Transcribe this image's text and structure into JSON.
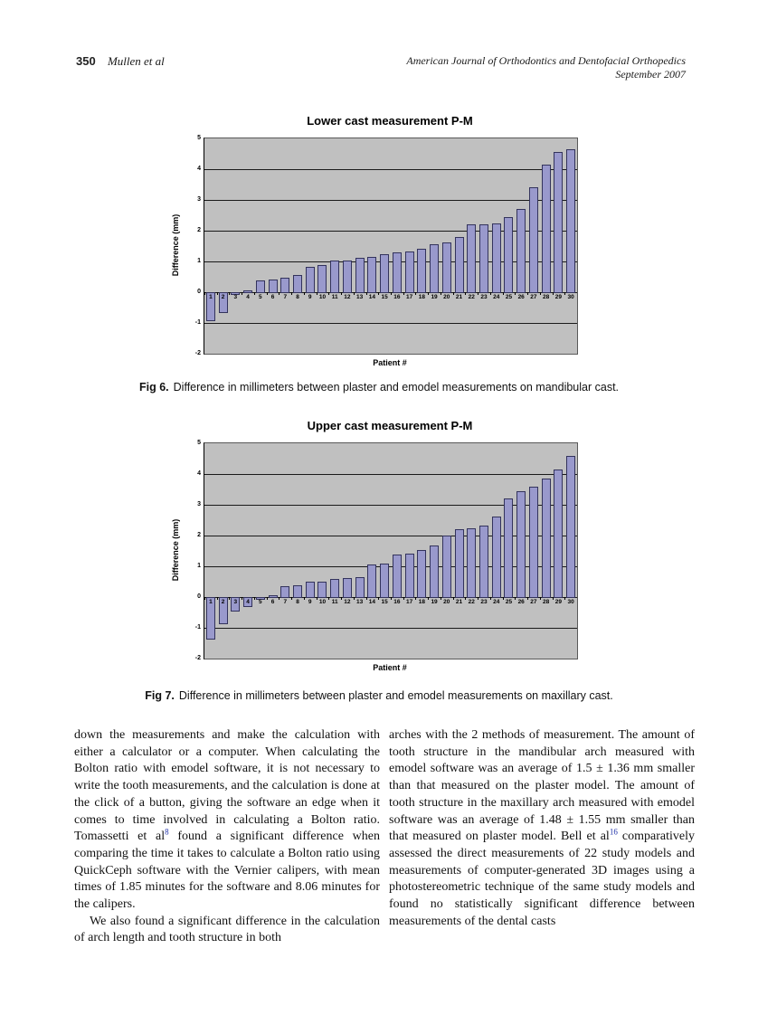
{
  "header": {
    "page_number": "350",
    "authors": "Mullen et al",
    "journal_line1": "American Journal of Orthodontics and Dentofacial Orthopedics",
    "journal_line2": "September 2007"
  },
  "figures": [
    {
      "caption_label": "Fig 6.",
      "caption_text": "Difference in millimeters between plaster and emodel measurements on mandibular cast."
    },
    {
      "caption_label": "Fig 7.",
      "caption_text": "Difference in millimeters between plaster and emodel measurements on maxillary cast."
    }
  ],
  "chart_data": [
    {
      "type": "bar",
      "title": "Lower cast measurement P-M",
      "xlabel": "Patient #",
      "ylabel": "Difference (mm)",
      "ylim": [
        -2,
        5
      ],
      "yticks": [
        5,
        4,
        3,
        2,
        1,
        0,
        -1,
        -2
      ],
      "grid": true,
      "legend": "none",
      "plot_bg": "#c0c0c0",
      "bar_color": "#9999cc",
      "bar_border": "#33335c",
      "categories": [
        "1",
        "2",
        "3",
        "4",
        "5",
        "6",
        "7",
        "8",
        "9",
        "10",
        "11",
        "12",
        "13",
        "14",
        "15",
        "16",
        "17",
        "18",
        "19",
        "20",
        "21",
        "22",
        "23",
        "24",
        "25",
        "26",
        "27",
        "28",
        "29",
        "30"
      ],
      "values": [
        -0.9,
        -0.65,
        -0.05,
        0.07,
        0.38,
        0.42,
        0.46,
        0.55,
        0.83,
        0.87,
        1.03,
        1.03,
        1.13,
        1.15,
        1.23,
        1.3,
        1.32,
        1.4,
        1.55,
        1.62,
        1.8,
        2.2,
        2.2,
        2.25,
        2.45,
        2.7,
        3.4,
        4.15,
        4.55,
        4.65
      ]
    },
    {
      "type": "bar",
      "title": "Upper cast measurement P-M",
      "xlabel": "Patient #",
      "ylabel": "Difference (mm)",
      "ylim": [
        -2,
        5
      ],
      "yticks": [
        5,
        4,
        3,
        2,
        1,
        0,
        -1,
        -2
      ],
      "grid": true,
      "legend": "none",
      "plot_bg": "#c0c0c0",
      "bar_color": "#9999cc",
      "bar_border": "#33335c",
      "categories": [
        "1",
        "2",
        "3",
        "4",
        "5",
        "6",
        "7",
        "8",
        "9",
        "10",
        "11",
        "12",
        "13",
        "14",
        "15",
        "16",
        "17",
        "18",
        "19",
        "20",
        "21",
        "22",
        "23",
        "24",
        "25",
        "26",
        "27",
        "28",
        "29",
        "30"
      ],
      "values": [
        -1.35,
        -0.85,
        -0.45,
        -0.3,
        -0.03,
        0.07,
        0.35,
        0.37,
        0.5,
        0.5,
        0.6,
        0.63,
        0.65,
        1.05,
        1.1,
        1.37,
        1.42,
        1.52,
        1.67,
        2.0,
        2.2,
        2.25,
        2.33,
        2.63,
        3.2,
        3.45,
        3.6,
        3.85,
        4.15,
        4.6
      ]
    }
  ],
  "body": {
    "left_column": {
      "para1_part1": "down the measurements and make the calculation with either a calculator or a computer. When calculating the Bolton ratio with emodel software, it is not necessary to write the tooth measurements, and the calculation is done at the click of a button, giving the software an edge when it comes to time involved in calculating a Bolton ratio. Tomassetti et al",
      "para1_sup": "8",
      "para1_part2": " found a significant difference when comparing the time it takes to calculate a Bolton ratio using QuickCeph software with the Vernier calipers, with mean times of 1.85 minutes for the software and 8.06 minutes for the calipers.",
      "para2": "We also found a significant difference in the calculation of arch length and tooth structure in both"
    },
    "right_column": {
      "para1_part1": "arches with the 2 methods of measurement. The amount of tooth structure in the mandibular arch measured with emodel software was an average of 1.5 ± 1.36 mm smaller than that measured on the plaster model. The amount of tooth structure in the maxillary arch measured with emodel software was an average of 1.48 ± 1.55 mm smaller than that measured on plaster model. Bell et al",
      "para1_sup": "16",
      "para1_part2": " comparatively assessed the direct measurements of 22 study models and measurements of computer-generated 3D images using a photostereometric technique of the same study models and found no statistically significant difference between measurements of the dental casts"
    }
  }
}
